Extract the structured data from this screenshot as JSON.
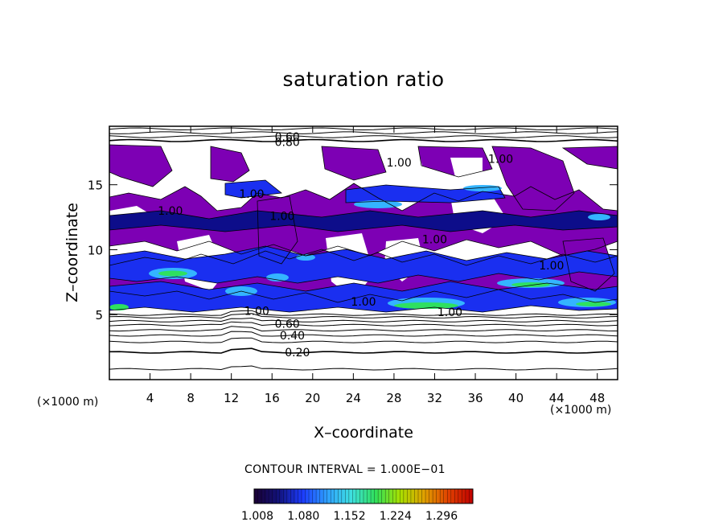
{
  "chart_data": {
    "type": "heatmap",
    "title": "saturation ratio",
    "xlabel": "X–coordinate",
    "ylabel": "Z–coordinate",
    "x_unit_left": "(×1000 m)",
    "x_unit_right": "(×1000 m)",
    "xlim": [
      0,
      50
    ],
    "ylim": [
      0,
      19.5
    ],
    "x_ticks": [
      4,
      8,
      12,
      16,
      20,
      24,
      28,
      32,
      36,
      40,
      44,
      48
    ],
    "x_tick_labels": [
      "4",
      "8",
      "12",
      "16",
      "20",
      "24",
      "28",
      "32",
      "36",
      "40",
      "44",
      "48"
    ],
    "y_ticks": [
      5,
      10,
      15
    ],
    "y_tick_labels": [
      "5",
      "10",
      "15"
    ],
    "contour_interval_text": "CONTOUR INTERVAL = 1.000E−01",
    "contour_labels": [
      {
        "text": "0.20",
        "x": 18.5,
        "z": 2.1
      },
      {
        "text": "0.40",
        "x": 18.0,
        "z": 3.4
      },
      {
        "text": "0.60",
        "x": 17.5,
        "z": 4.3
      },
      {
        "text": "1.00",
        "x": 14.5,
        "z": 5.3
      },
      {
        "text": "1.00",
        "x": 25.0,
        "z": 6.0
      },
      {
        "text": "1.00",
        "x": 33.5,
        "z": 5.2
      },
      {
        "text": "1.00",
        "x": 14.0,
        "z": 14.3
      },
      {
        "text": "1.00",
        "x": 17.0,
        "z": 12.6
      },
      {
        "text": "1.00",
        "x": 6.0,
        "z": 13.0
      },
      {
        "text": "1.00",
        "x": 32.0,
        "z": 10.8
      },
      {
        "text": "1.00",
        "x": 43.5,
        "z": 8.8
      },
      {
        "text": "1.00",
        "x": 28.5,
        "z": 16.7
      },
      {
        "text": "1.00",
        "x": 38.5,
        "z": 17.0
      },
      {
        "text": "0.60",
        "x": 17.5,
        "z": 18.7
      },
      {
        "text": "0.80",
        "x": 17.5,
        "z": 18.3
      }
    ],
    "colorbar": {
      "min": 1.008,
      "max": 1.35,
      "ticks": [
        1.008,
        1.08,
        1.152,
        1.224,
        1.296
      ],
      "tick_labels": [
        "1.008",
        "1.080",
        "1.152",
        "1.224",
        "1.296"
      ],
      "colors": [
        "#1a0033",
        "#12127a",
        "#1c3cff",
        "#2ea0ff",
        "#3ee0e0",
        "#30e05a",
        "#a8e000",
        "#e0a000",
        "#e04000",
        "#c00000"
      ]
    },
    "supersaturated_regions_color": "#7a00b0",
    "fill_colors": {
      "purple": "#7d00b4",
      "blue": "#1a2ff0",
      "dark_blue": "#0d0d8a",
      "cyan": "#34b4ff",
      "green": "#2ee060"
    }
  }
}
